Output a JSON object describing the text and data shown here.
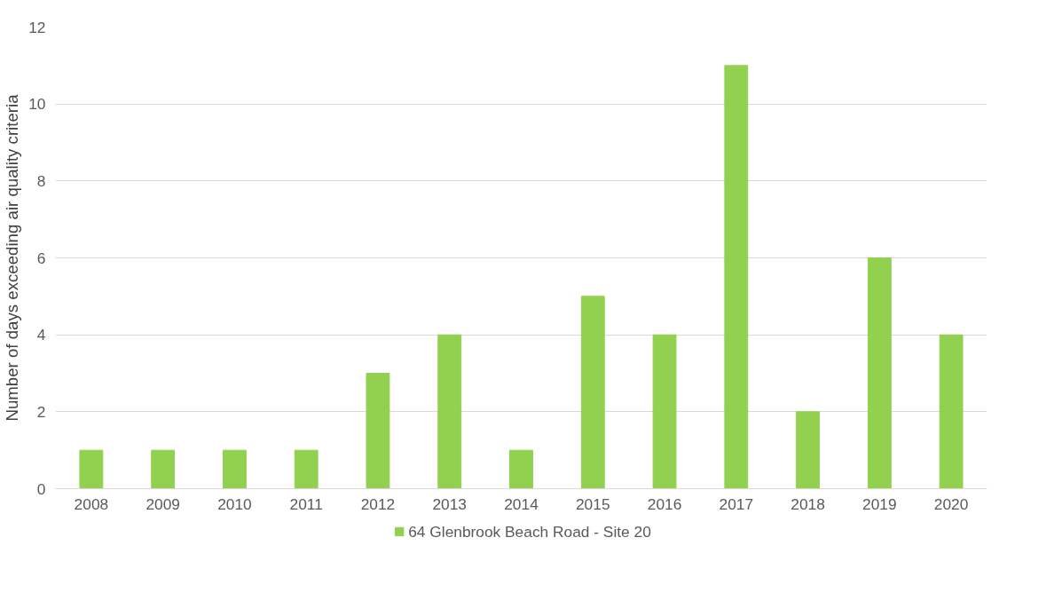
{
  "chart_data": {
    "type": "bar",
    "ylabel": "Number of days exceeding air quality criteria",
    "categories": [
      "2008",
      "2009",
      "2010",
      "2011",
      "2012",
      "2013",
      "2014",
      "2015",
      "2016",
      "2017",
      "2018",
      "2019",
      "2020"
    ],
    "series": [
      {
        "name": "64 Glenbrook Beach Road - Site 20",
        "color": "#92d050",
        "values": [
          1,
          1,
          1,
          1,
          3,
          4,
          1,
          5,
          4,
          11,
          2,
          6,
          4
        ]
      }
    ],
    "ylim": [
      0,
      12
    ],
    "yticks": [
      0,
      2,
      4,
      6,
      8,
      10,
      12
    ],
    "grid": "y",
    "legend": "bottom"
  }
}
